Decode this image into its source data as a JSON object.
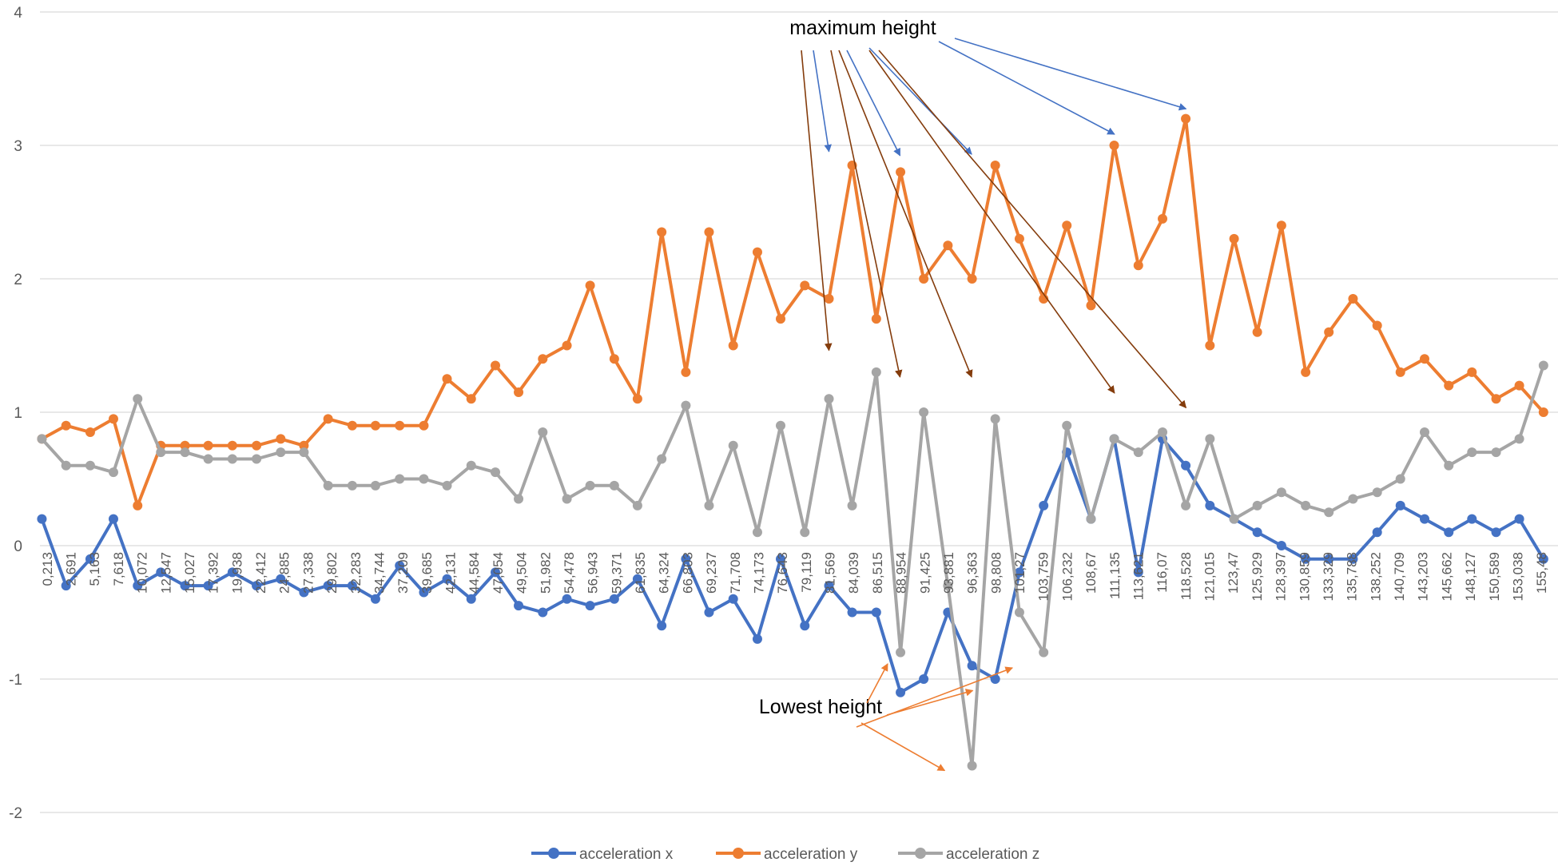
{
  "chart_data": {
    "type": "line",
    "title": "",
    "xlabel": "",
    "ylabel": "",
    "ylim": [
      -2,
      4
    ],
    "yticks": [
      -2,
      -1,
      0,
      1,
      2,
      3,
      4
    ],
    "grid": "horizontal",
    "legend_position": "bottom",
    "x_tick_labels": [
      "0,213",
      "2,691",
      "5,163",
      "7,618",
      "10,072",
      "12,547",
      "15,027",
      "17,392",
      "19,938",
      "22,412",
      "24,885",
      "27,338",
      "29,802",
      "32,283",
      "34,744",
      "37,209",
      "39,685",
      "42,131",
      "44,584",
      "47,054",
      "49,504",
      "51,982",
      "54,478",
      "56,943",
      "59,371",
      "61,835",
      "64,324",
      "66,803",
      "69,237",
      "71,708",
      "74,173",
      "76,643",
      "79,119",
      "81,569",
      "84,039",
      "86,515",
      "88,954",
      "91,425",
      "93,881",
      "96,363",
      "98,808",
      "101,27",
      "103,759",
      "106,232",
      "108,67",
      "111,135",
      "113,621",
      "116,07",
      "118,528",
      "121,015",
      "123,47",
      "125,929",
      "128,397",
      "130,859",
      "133,329",
      "135,788",
      "138,252",
      "140,709",
      "143,203",
      "145,662",
      "148,127",
      "150,589",
      "153,038",
      "155,48"
    ],
    "series": [
      {
        "name": "acceleration x",
        "color": "#4472C4",
        "x": [
          0.2,
          2.7,
          5.2,
          7.6,
          10.1,
          12.5,
          15.0,
          17.4,
          19.9,
          22.4,
          24.9,
          27.3,
          29.8,
          32.3,
          34.7,
          37.2,
          39.7,
          42.1,
          44.6,
          47.1,
          49.5,
          52.0,
          54.5,
          56.9,
          59.4,
          61.8,
          64.3,
          66.8,
          69.2,
          71.7,
          74.2,
          76.6,
          79.1,
          81.6,
          84.0,
          86.5,
          89.0,
          91.4,
          93.9,
          96.4,
          98.8,
          101.3,
          103.8,
          106.2,
          108.7,
          111.1,
          113.6,
          116.1,
          118.5,
          121.0,
          123.5,
          125.9,
          128.4,
          130.9,
          133.3,
          135.8,
          138.3,
          140.7,
          143.2,
          145.7,
          148.1,
          150.6,
          153.0,
          155.5
        ],
        "values": [
          0.2,
          -0.3,
          -0.1,
          0.2,
          -0.3,
          -0.2,
          -0.3,
          -0.3,
          -0.2,
          -0.3,
          -0.25,
          -0.35,
          -0.3,
          -0.3,
          -0.4,
          -0.15,
          -0.35,
          -0.25,
          -0.4,
          -0.2,
          -0.45,
          -0.5,
          -0.4,
          -0.45,
          -0.4,
          -0.25,
          -0.6,
          -0.1,
          -0.5,
          -0.4,
          -0.7,
          -0.1,
          -0.6,
          -0.3,
          -0.5,
          -0.5,
          -1.1,
          -1.0,
          -0.5,
          -0.9,
          -1.0,
          -0.2,
          0.3,
          0.7,
          0.2,
          0.8,
          -0.2,
          0.8,
          0.6,
          0.3,
          0.2,
          0.1,
          0.0,
          -0.1,
          -0.1,
          -0.1,
          0.1,
          0.3,
          0.2,
          0.1,
          0.2,
          0.1,
          0.2,
          -0.1
        ]
      },
      {
        "name": "acceleration y",
        "color": "#ED7D31",
        "x": [
          0.2,
          2.7,
          5.2,
          7.6,
          10.1,
          12.5,
          15.0,
          17.4,
          19.9,
          22.4,
          24.9,
          27.3,
          29.8,
          32.3,
          34.7,
          37.2,
          39.7,
          42.1,
          44.6,
          47.1,
          49.5,
          52.0,
          54.5,
          56.9,
          59.4,
          61.8,
          64.3,
          66.8,
          69.2,
          71.7,
          74.2,
          76.6,
          79.1,
          81.6,
          84.0,
          86.5,
          89.0,
          91.4,
          93.9,
          96.4,
          98.8,
          101.3,
          103.8,
          106.2,
          108.7,
          111.1,
          113.6,
          116.1,
          118.5,
          121.0,
          123.5,
          125.9,
          128.4,
          130.9,
          133.3,
          135.8,
          138.3,
          140.7,
          143.2,
          145.7,
          148.1,
          150.6,
          153.0,
          155.5
        ],
        "values": [
          0.8,
          0.9,
          0.85,
          0.95,
          0.3,
          0.75,
          0.75,
          0.75,
          0.75,
          0.75,
          0.8,
          0.75,
          0.95,
          0.9,
          0.9,
          0.9,
          0.9,
          1.25,
          1.1,
          1.35,
          1.15,
          1.4,
          1.5,
          1.95,
          1.4,
          1.1,
          2.35,
          1.3,
          2.35,
          1.5,
          2.2,
          1.7,
          1.95,
          1.85,
          2.85,
          1.7,
          2.8,
          2.0,
          2.25,
          2.0,
          2.85,
          2.3,
          1.85,
          2.4,
          1.8,
          3.0,
          2.1,
          2.45,
          3.2,
          1.5,
          2.3,
          1.6,
          2.4,
          1.3,
          1.6,
          1.85,
          1.65,
          1.3,
          1.4,
          1.2,
          1.3,
          1.1,
          1.2,
          1.0
        ]
      },
      {
        "name": "acceleration z",
        "color": "#A5A5A5",
        "x": [
          0.2,
          2.7,
          5.2,
          7.6,
          10.1,
          12.5,
          15.0,
          17.4,
          19.9,
          22.4,
          24.9,
          27.3,
          29.8,
          32.3,
          34.7,
          37.2,
          39.7,
          42.1,
          44.6,
          47.1,
          49.5,
          52.0,
          54.5,
          56.9,
          59.4,
          61.8,
          64.3,
          66.8,
          69.2,
          71.7,
          74.2,
          76.6,
          79.1,
          81.6,
          84.0,
          86.5,
          89.0,
          91.4,
          93.9,
          96.4,
          98.8,
          101.3,
          103.8,
          106.2,
          108.7,
          111.1,
          113.6,
          116.1,
          118.5,
          121.0,
          123.5,
          125.9,
          128.4,
          130.9,
          133.3,
          135.8,
          138.3,
          140.7,
          143.2,
          145.7,
          148.1,
          150.6,
          153.0,
          155.5
        ],
        "values": [
          0.8,
          0.6,
          0.6,
          0.55,
          1.1,
          0.7,
          0.7,
          0.65,
          0.65,
          0.65,
          0.7,
          0.7,
          0.45,
          0.45,
          0.45,
          0.5,
          0.5,
          0.45,
          0.6,
          0.55,
          0.35,
          0.85,
          0.35,
          0.45,
          0.45,
          0.3,
          0.65,
          1.05,
          0.3,
          0.75,
          0.1,
          0.9,
          0.1,
          1.1,
          0.3,
          1.3,
          -0.8,
          1.0,
          -0.3,
          -1.65,
          0.95,
          -0.5,
          -0.8,
          0.9,
          0.2,
          0.8,
          0.7,
          0.85,
          0.3,
          0.8,
          0.2,
          0.3,
          0.4,
          0.3,
          0.25,
          0.35,
          0.4,
          0.5,
          0.85,
          0.6,
          0.7,
          0.7,
          0.8,
          1.35
        ]
      }
    ],
    "annotations": [
      {
        "text": "maximum height",
        "targets": [
          [
            81.6,
            2.87
          ],
          [
            88.95,
            2.84
          ],
          [
            96.36,
            2.85
          ],
          [
            111.13,
            3.0
          ],
          [
            118.53,
            3.19
          ],
          [
            81.6,
            1.38
          ],
          [
            88.95,
            1.18
          ],
          [
            96.36,
            1.18
          ],
          [
            111.13,
            1.06
          ],
          [
            118.53,
            0.95
          ]
        ]
      },
      {
        "text": "Lowest height",
        "targets": [
          [
            88.0,
            -0.85
          ],
          [
            93.9,
            -1.65
          ],
          [
            96.8,
            -1.05
          ],
          [
            100.9,
            -0.88
          ]
        ]
      }
    ]
  },
  "legend": {
    "items": [
      {
        "label": "acceleration x",
        "color": "#4472C4"
      },
      {
        "label": "acceleration y",
        "color": "#ED7D31"
      },
      {
        "label": "acceleration z",
        "color": "#A5A5A5"
      }
    ]
  }
}
